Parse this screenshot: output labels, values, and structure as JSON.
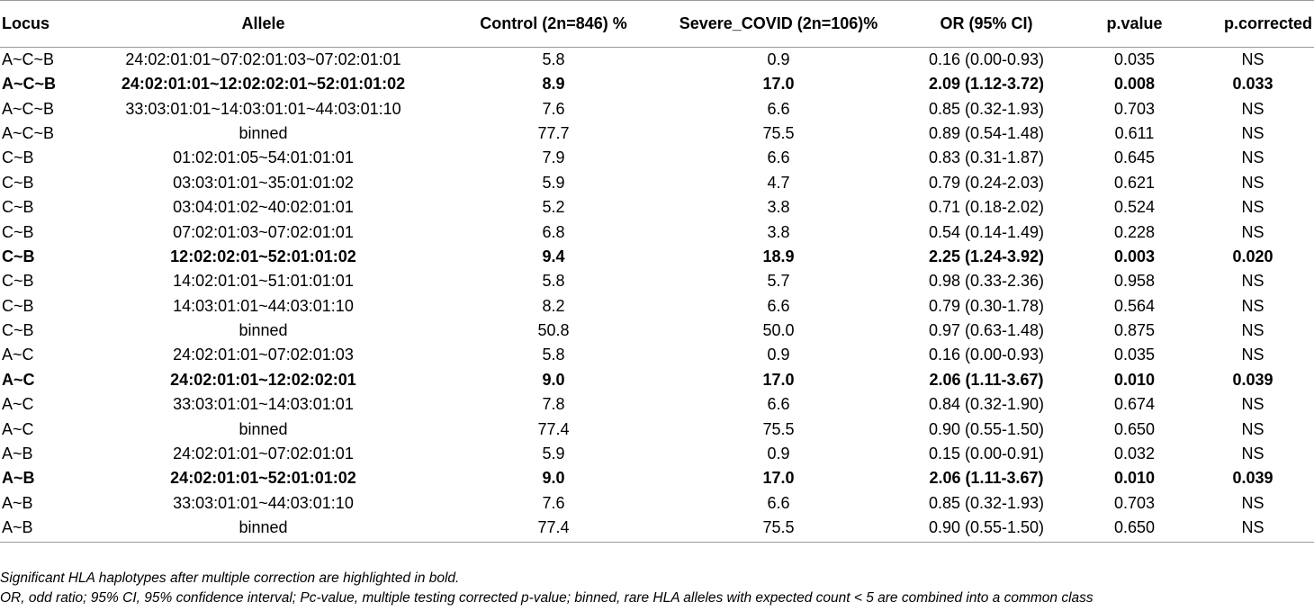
{
  "table": {
    "headers": {
      "locus": "Locus",
      "allele": "Allele",
      "control": "Control (2n=846) %",
      "severe": "Severe_COVID (2n=106)%",
      "or": "OR (95% CI)",
      "pvalue": "p.value",
      "pcorrected": "p.corrected"
    },
    "rows": [
      {
        "locus": "A~C~B",
        "allele": "24:02:01:01~07:02:01:03~07:02:01:01",
        "control": "5.8",
        "severe": "0.9",
        "or": "0.16 (0.00-0.93)",
        "pvalue": "0.035",
        "pcorrected": "NS",
        "bold": false
      },
      {
        "locus": "A~C~B",
        "allele": "24:02:01:01~12:02:02:01~52:01:01:02",
        "control": "8.9",
        "severe": "17.0",
        "or": "2.09 (1.12-3.72)",
        "pvalue": "0.008",
        "pcorrected": "0.033",
        "bold": true
      },
      {
        "locus": "A~C~B",
        "allele": "33:03:01:01~14:03:01:01~44:03:01:10",
        "control": "7.6",
        "severe": "6.6",
        "or": "0.85 (0.32-1.93)",
        "pvalue": "0.703",
        "pcorrected": "NS",
        "bold": false
      },
      {
        "locus": "A~C~B",
        "allele": "binned",
        "control": "77.7",
        "severe": "75.5",
        "or": "0.89 (0.54-1.48)",
        "pvalue": "0.611",
        "pcorrected": "NS",
        "bold": false
      },
      {
        "locus": "C~B",
        "allele": "01:02:01:05~54:01:01:01",
        "control": "7.9",
        "severe": "6.6",
        "or": "0.83 (0.31-1.87)",
        "pvalue": "0.645",
        "pcorrected": "NS",
        "bold": false
      },
      {
        "locus": "C~B",
        "allele": "03:03:01:01~35:01:01:02",
        "control": "5.9",
        "severe": "4.7",
        "or": "0.79 (0.24-2.03)",
        "pvalue": "0.621",
        "pcorrected": "NS",
        "bold": false
      },
      {
        "locus": "C~B",
        "allele": "03:04:01:02~40:02:01:01",
        "control": "5.2",
        "severe": "3.8",
        "or": "0.71 (0.18-2.02)",
        "pvalue": "0.524",
        "pcorrected": "NS",
        "bold": false
      },
      {
        "locus": "C~B",
        "allele": "07:02:01:03~07:02:01:01",
        "control": "6.8",
        "severe": "3.8",
        "or": "0.54 (0.14-1.49)",
        "pvalue": "0.228",
        "pcorrected": "NS",
        "bold": false
      },
      {
        "locus": "C~B",
        "allele": "12:02:02:01~52:01:01:02",
        "control": "9.4",
        "severe": "18.9",
        "or": "2.25 (1.24-3.92)",
        "pvalue": "0.003",
        "pcorrected": "0.020",
        "bold": true
      },
      {
        "locus": "C~B",
        "allele": "14:02:01:01~51:01:01:01",
        "control": "5.8",
        "severe": "5.7",
        "or": "0.98 (0.33-2.36)",
        "pvalue": "0.958",
        "pcorrected": "NS",
        "bold": false
      },
      {
        "locus": "C~B",
        "allele": "14:03:01:01~44:03:01:10",
        "control": "8.2",
        "severe": "6.6",
        "or": "0.79 (0.30-1.78)",
        "pvalue": "0.564",
        "pcorrected": "NS",
        "bold": false
      },
      {
        "locus": "C~B",
        "allele": "binned",
        "control": "50.8",
        "severe": "50.0",
        "or": "0.97 (0.63-1.48)",
        "pvalue": "0.875",
        "pcorrected": "NS",
        "bold": false
      },
      {
        "locus": "A~C",
        "allele": "24:02:01:01~07:02:01:03",
        "control": "5.8",
        "severe": "0.9",
        "or": "0.16 (0.00-0.93)",
        "pvalue": "0.035",
        "pcorrected": "NS",
        "bold": false
      },
      {
        "locus": "A~C",
        "allele": "24:02:01:01~12:02:02:01",
        "control": "9.0",
        "severe": "17.0",
        "or": "2.06 (1.11-3.67)",
        "pvalue": "0.010",
        "pcorrected": "0.039",
        "bold": true
      },
      {
        "locus": "A~C",
        "allele": "33:03:01:01~14:03:01:01",
        "control": "7.8",
        "severe": "6.6",
        "or": "0.84 (0.32-1.90)",
        "pvalue": "0.674",
        "pcorrected": "NS",
        "bold": false
      },
      {
        "locus": "A~C",
        "allele": "binned",
        "control": "77.4",
        "severe": "75.5",
        "or": "0.90 (0.55-1.50)",
        "pvalue": "0.650",
        "pcorrected": "NS",
        "bold": false
      },
      {
        "locus": "A~B",
        "allele": "24:02:01:01~07:02:01:01",
        "control": "5.9",
        "severe": "0.9",
        "or": "0.15 (0.00-0.91)",
        "pvalue": "0.032",
        "pcorrected": "NS",
        "bold": false
      },
      {
        "locus": "A~B",
        "allele": "24:02:01:01~52:01:01:02",
        "control": "9.0",
        "severe": "17.0",
        "or": "2.06 (1.11-3.67)",
        "pvalue": "0.010",
        "pcorrected": "0.039",
        "bold": true
      },
      {
        "locus": "A~B",
        "allele": "33:03:01:01~44:03:01:10",
        "control": "7.6",
        "severe": "6.6",
        "or": "0.85 (0.32-1.93)",
        "pvalue": "0.703",
        "pcorrected": "NS",
        "bold": false
      },
      {
        "locus": "A~B",
        "allele": "binned",
        "control": "77.4",
        "severe": "75.5",
        "or": "0.90 (0.55-1.50)",
        "pvalue": "0.650",
        "pcorrected": "NS",
        "bold": false
      }
    ]
  },
  "footnotes": {
    "line1": "Significant HLA haplotypes after multiple correction are highlighted in bold.",
    "line2": "OR, odd ratio; 95% CI, 95% confidence interval; Pc-value, multiple testing corrected p-value; binned, rare HLA alleles with expected count < 5 are combined into a common class"
  }
}
